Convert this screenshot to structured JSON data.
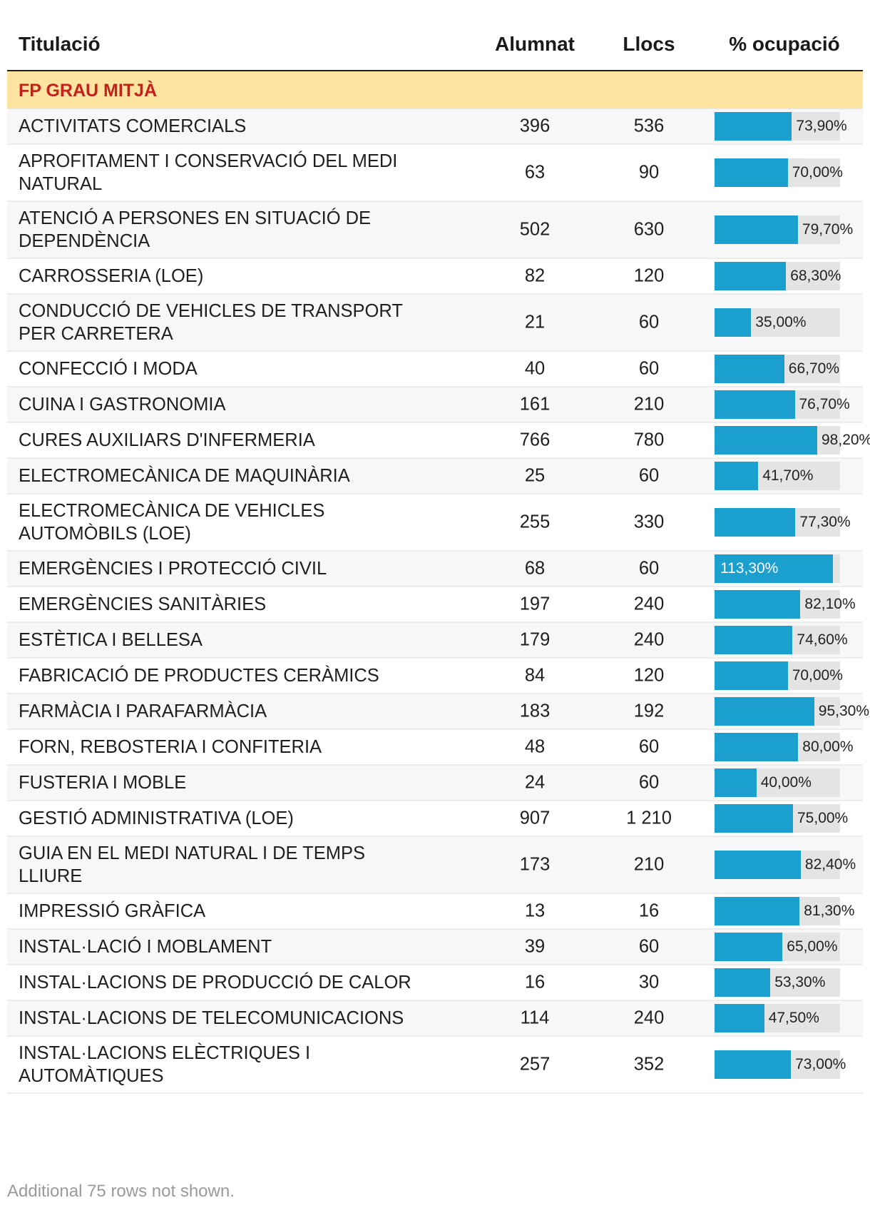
{
  "chart_data": {
    "type": "table",
    "columns": [
      "Titulació",
      "Alumnat",
      "Llocs",
      "% ocupació"
    ],
    "group": "FP GRAU MITJÀ",
    "bar_max": 120,
    "rows": [
      {
        "name": "ACTIVITATS COMERCIALS",
        "alumnat": "396",
        "llocs": "536",
        "pct": 73.9,
        "pct_label": "73,90%"
      },
      {
        "name": "APROFITAMENT I CONSERVACIÓ DEL MEDI NATURAL",
        "alumnat": "63",
        "llocs": "90",
        "pct": 70.0,
        "pct_label": "70,00%"
      },
      {
        "name": "ATENCIÓ A PERSONES EN SITUACIÓ DE DEPENDÈNCIA",
        "alumnat": "502",
        "llocs": "630",
        "pct": 79.7,
        "pct_label": "79,70%"
      },
      {
        "name": "CARROSSERIA (LOE)",
        "alumnat": "82",
        "llocs": "120",
        "pct": 68.3,
        "pct_label": "68,30%"
      },
      {
        "name": "CONDUCCIÓ DE VEHICLES DE TRANSPORT PER CARRETERA",
        "alumnat": "21",
        "llocs": "60",
        "pct": 35.0,
        "pct_label": "35,00%"
      },
      {
        "name": "CONFECCIÓ I MODA",
        "alumnat": "40",
        "llocs": "60",
        "pct": 66.7,
        "pct_label": "66,70%"
      },
      {
        "name": "CUINA I GASTRONOMIA",
        "alumnat": "161",
        "llocs": "210",
        "pct": 76.7,
        "pct_label": "76,70%"
      },
      {
        "name": "CURES AUXILIARS D'INFERMERIA",
        "alumnat": "766",
        "llocs": "780",
        "pct": 98.2,
        "pct_label": "98,20%"
      },
      {
        "name": "ELECTROMECÀNICA DE MAQUINÀRIA",
        "alumnat": "25",
        "llocs": "60",
        "pct": 41.7,
        "pct_label": "41,70%"
      },
      {
        "name": "ELECTROMECÀNICA DE VEHICLES AUTOMÒBILS (LOE)",
        "alumnat": "255",
        "llocs": "330",
        "pct": 77.3,
        "pct_label": "77,30%"
      },
      {
        "name": "EMERGÈNCIES I PROTECCIÓ CIVIL",
        "alumnat": "68",
        "llocs": "60",
        "pct": 113.3,
        "pct_label": "113,30%"
      },
      {
        "name": "EMERGÈNCIES SANITÀRIES",
        "alumnat": "197",
        "llocs": "240",
        "pct": 82.1,
        "pct_label": "82,10%"
      },
      {
        "name": "ESTÈTICA I BELLESA",
        "alumnat": "179",
        "llocs": "240",
        "pct": 74.6,
        "pct_label": "74,60%"
      },
      {
        "name": "FABRICACIÓ DE PRODUCTES CERÀMICS",
        "alumnat": "84",
        "llocs": "120",
        "pct": 70.0,
        "pct_label": "70,00%"
      },
      {
        "name": "FARMÀCIA I PARAFARMÀCIA",
        "alumnat": "183",
        "llocs": "192",
        "pct": 95.3,
        "pct_label": "95,30%"
      },
      {
        "name": "FORN, REBOSTERIA I CONFITERIA",
        "alumnat": "48",
        "llocs": "60",
        "pct": 80.0,
        "pct_label": "80,00%"
      },
      {
        "name": "FUSTERIA I MOBLE",
        "alumnat": "24",
        "llocs": "60",
        "pct": 40.0,
        "pct_label": "40,00%"
      },
      {
        "name": "GESTIÓ ADMINISTRATIVA (LOE)",
        "alumnat": "907",
        "llocs": "1 210",
        "pct": 75.0,
        "pct_label": "75,00%"
      },
      {
        "name": "GUIA EN EL MEDI NATURAL I DE TEMPS LLIURE",
        "alumnat": "173",
        "llocs": "210",
        "pct": 82.4,
        "pct_label": "82,40%"
      },
      {
        "name": "IMPRESSIÓ GRÀFICA",
        "alumnat": "13",
        "llocs": "16",
        "pct": 81.3,
        "pct_label": "81,30%"
      },
      {
        "name": "INSTAL·LACIÓ I MOBLAMENT",
        "alumnat": "39",
        "llocs": "60",
        "pct": 65.0,
        "pct_label": "65,00%"
      },
      {
        "name": "INSTAL·LACIONS DE PRODUCCIÓ DE CALOR",
        "alumnat": "16",
        "llocs": "30",
        "pct": 53.3,
        "pct_label": "53,30%"
      },
      {
        "name": "INSTAL·LACIONS DE TELECOMUNICACIONS",
        "alumnat": "114",
        "llocs": "240",
        "pct": 47.5,
        "pct_label": "47,50%"
      },
      {
        "name": "INSTAL·LACIONS ELÈCTRIQUES I AUTOMÀTIQUES",
        "alumnat": "257",
        "llocs": "352",
        "pct": 73.0,
        "pct_label": "73,00%"
      }
    ],
    "footnote": "Additional 75 rows not shown."
  },
  "colors": {
    "bar": "#1a9fcf",
    "bar_track": "#e4e4e4",
    "group_bg": "#fde4a0",
    "group_text": "#c3211b"
  }
}
